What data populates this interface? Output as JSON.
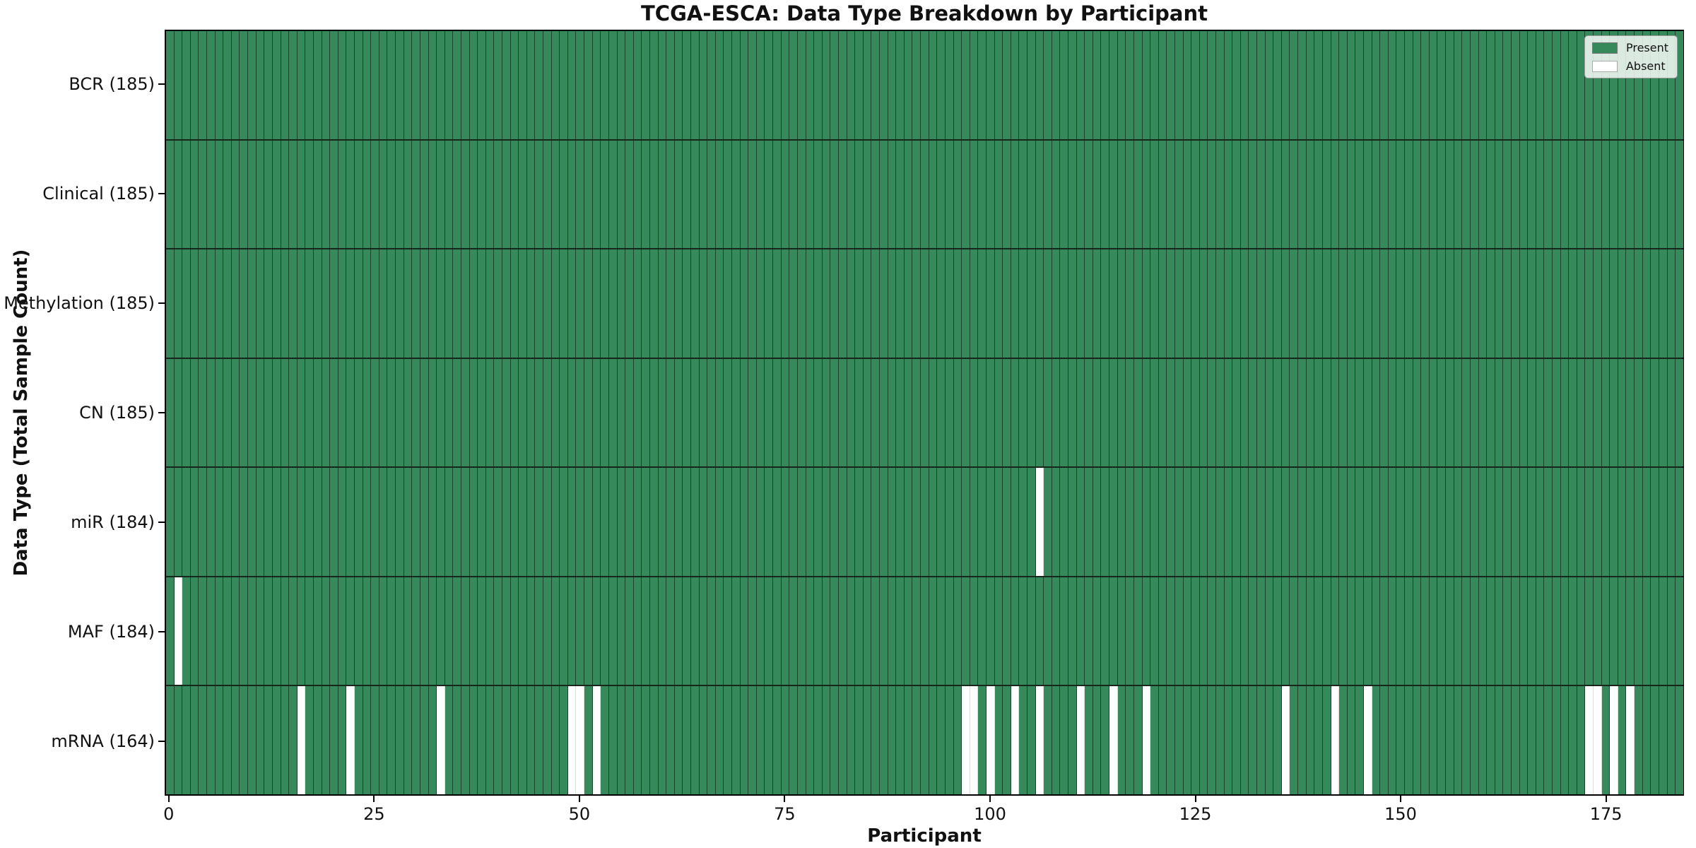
{
  "chart_data": {
    "type": "heatmap",
    "title": "TCGA-ESCA: Data Type Breakdown by Participant",
    "xlabel": "Participant",
    "ylabel": "Data Type (Total Sample Count)",
    "n_participants": 185,
    "x_ticks": [
      0,
      25,
      50,
      75,
      100,
      125,
      150,
      175
    ],
    "colors": {
      "present": "#35895b",
      "absent": "#ffffff"
    },
    "legend": [
      {
        "label": "Present",
        "color": "#35895b"
      },
      {
        "label": "Absent",
        "color": "#ffffff"
      }
    ],
    "rows": [
      {
        "label": "BCR (185)",
        "data_type": "BCR",
        "present_count": 185,
        "absent_participants": []
      },
      {
        "label": "Clinical (185)",
        "data_type": "Clinical",
        "present_count": 185,
        "absent_participants": []
      },
      {
        "label": "Methylation (185)",
        "data_type": "Methylation",
        "present_count": 185,
        "absent_participants": []
      },
      {
        "label": "CN (185)",
        "data_type": "CN",
        "present_count": 185,
        "absent_participants": []
      },
      {
        "label": "miR (184)",
        "data_type": "miR",
        "present_count": 184,
        "absent_participants": [
          106
        ]
      },
      {
        "label": "MAF (184)",
        "data_type": "MAF",
        "present_count": 184,
        "absent_participants": [
          1
        ]
      },
      {
        "label": "mRNA (164)",
        "data_type": "mRNA",
        "present_count": 164,
        "absent_participants": [
          16,
          22,
          33,
          49,
          50,
          52,
          97,
          98,
          100,
          103,
          106,
          111,
          115,
          119,
          136,
          142,
          146,
          173,
          174,
          176,
          178
        ]
      }
    ]
  }
}
